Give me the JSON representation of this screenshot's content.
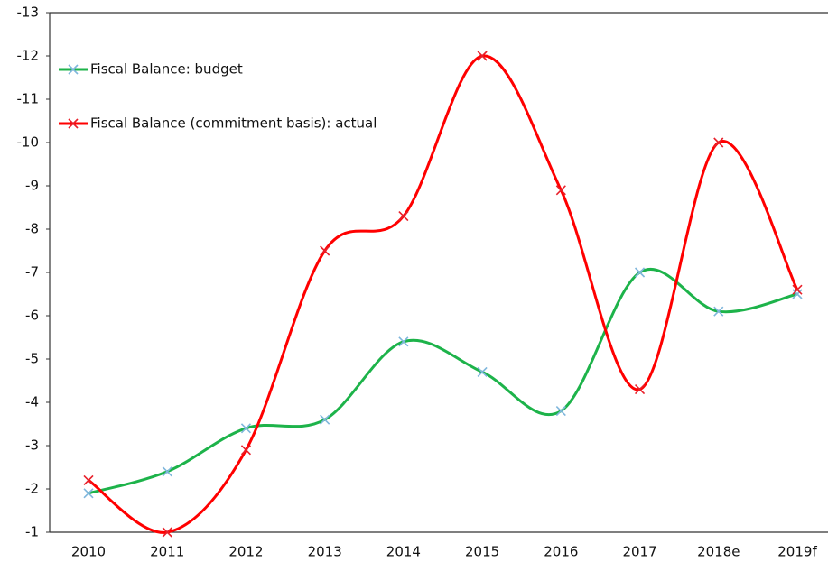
{
  "chart_data": {
    "type": "line",
    "categories": [
      "2010",
      "2011",
      "2012",
      "2013",
      "2014",
      "2015",
      "2016",
      "2017",
      "2018e",
      "2019f"
    ],
    "series": [
      {
        "name": "Fiscal Balance: budget",
        "color": "#1db34a",
        "marker_color": "#7fb6dc",
        "values": [
          -1.9,
          -2.4,
          -3.4,
          -3.6,
          -5.4,
          -4.7,
          -3.8,
          -7.0,
          -6.1,
          -6.5
        ]
      },
      {
        "name": "Fiscal Balance (commitment basis): actual",
        "color": "#ff0000",
        "marker_color": "#e8202a",
        "values": [
          -2.2,
          -1.0,
          -2.9,
          -7.5,
          -8.3,
          -12.0,
          -8.9,
          -4.3,
          -10.0,
          -6.6
        ]
      }
    ],
    "ylim": [
      -1,
      -13
    ],
    "yticks": [
      -1,
      -2,
      -3,
      -4,
      -5,
      -6,
      -7,
      -8,
      -9,
      -10,
      -11,
      -12,
      -13
    ],
    "legend": "upper left",
    "grid": false,
    "smooth": true
  }
}
